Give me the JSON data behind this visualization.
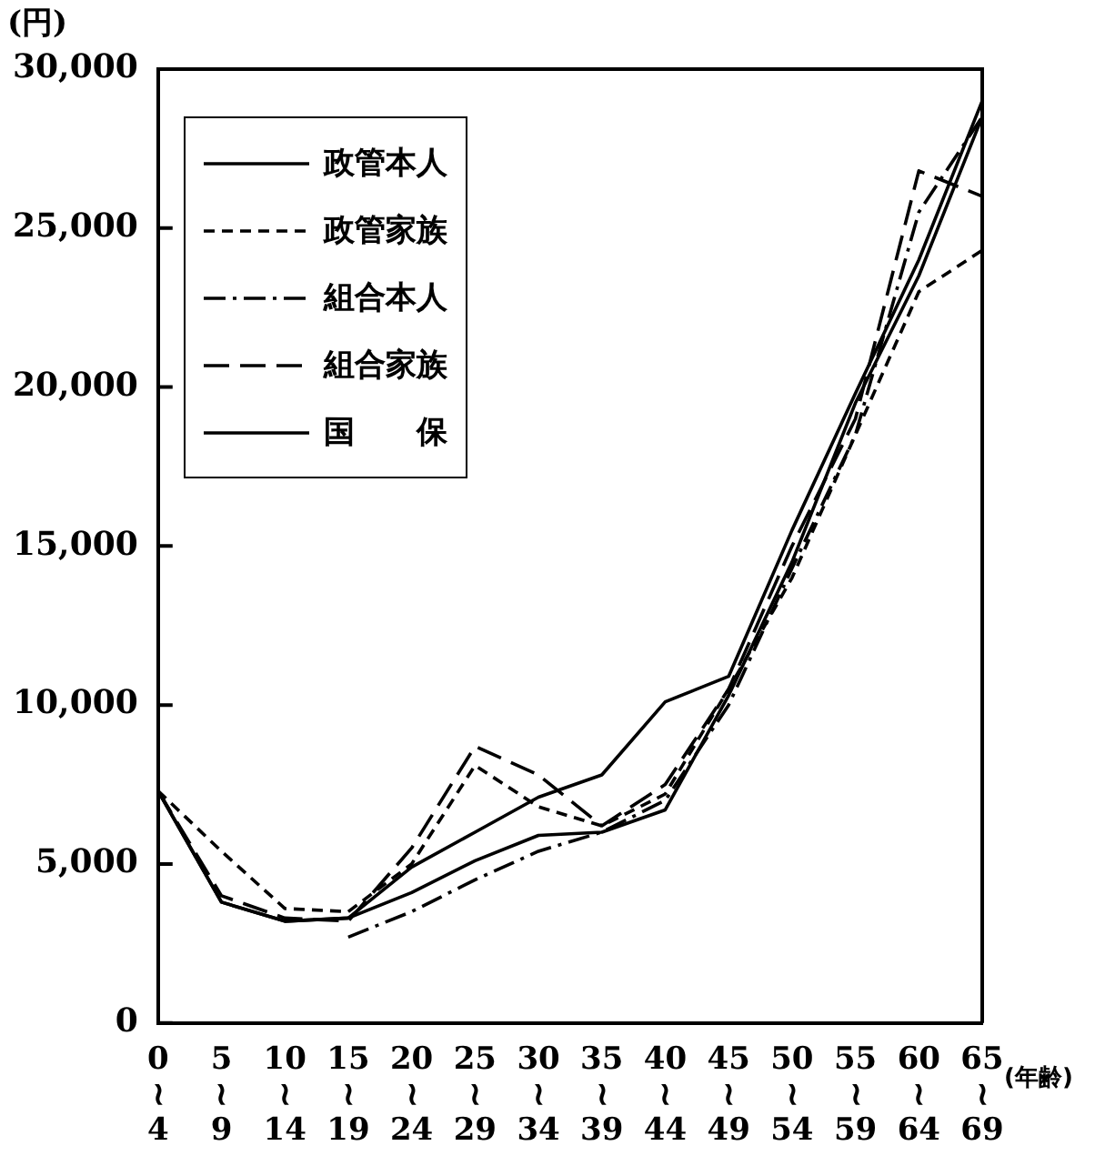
{
  "chart_data": {
    "type": "line",
    "ylabel": "(円)",
    "xlabel": "(年齢)",
    "categories": [
      "0\n≀\n4",
      "5\n≀\n9",
      "10\n≀\n14",
      "15\n≀\n19",
      "20\n≀\n24",
      "25\n≀\n29",
      "30\n≀\n34",
      "35\n≀\n39",
      "40\n≀\n44",
      "45\n≀\n49",
      "50\n≀\n54",
      "55\n≀\n59",
      "60\n≀\n64",
      "65\n≀\n69"
    ],
    "series": [
      {
        "name": "政管本人",
        "color": "#000000",
        "line_style": "solid",
        "values": [
          7300,
          3800,
          3200,
          3300,
          4100,
          5100,
          5900,
          6000,
          6700,
          10300,
          14500,
          19500,
          23500,
          28500
        ]
      },
      {
        "name": "政管家族",
        "color": "#000000",
        "line_style": "dashed",
        "values": [
          7300,
          5400,
          3600,
          3500,
          5000,
          8100,
          6800,
          6200,
          7200,
          10500,
          14000,
          18500,
          23000,
          24300
        ]
      },
      {
        "name": "組合本人",
        "color": "#000000",
        "line_style": "dashdot",
        "values": [
          null,
          null,
          null,
          2700,
          3500,
          4500,
          5400,
          6000,
          7000,
          10000,
          14300,
          18500,
          25500,
          28500
        ]
      },
      {
        "name": "組合家族",
        "color": "#000000",
        "line_style": "longdash",
        "values": [
          7300,
          4000,
          3300,
          3200,
          5500,
          8700,
          7800,
          6200,
          7500,
          10500,
          15000,
          19000,
          26800,
          26000
        ]
      },
      {
        "name": "国　　保",
        "color": "#000000",
        "line_style": "solid",
        "values": [
          7300,
          3800,
          3200,
          3300,
          4900,
          6000,
          7100,
          7800,
          10100,
          10900,
          15500,
          19800,
          24000,
          29000
        ]
      }
    ],
    "ylim": [
      0,
      30000
    ],
    "yticks": [
      0,
      {
        "value": 5000,
        "label": "5,000"
      },
      {
        "value": 10000,
        "label": "10,000"
      },
      {
        "value": 15000,
        "label": "15,000"
      },
      {
        "value": 20000,
        "label": "20,000"
      },
      {
        "value": 25000,
        "label": "25,000"
      },
      {
        "value": 30000,
        "label": "30,000"
      }
    ],
    "grid": false,
    "legend": "top left",
    "marker": "none"
  }
}
